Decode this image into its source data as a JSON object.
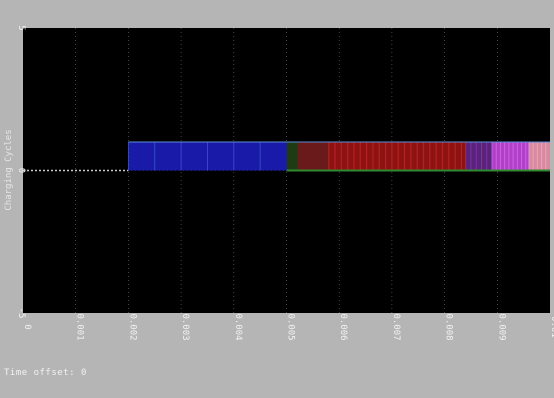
{
  "chart_data": {
    "type": "area",
    "ylabel": "Charging Cycles",
    "x": {
      "ticks": [
        0,
        0.001,
        0.002,
        0.003,
        0.004,
        0.005,
        0.006,
        0.007,
        0.008,
        0.009,
        0.01
      ],
      "tick_labels": [
        "0",
        "0.001",
        "0.002",
        "0.003",
        "0.004",
        "0.005",
        "0.006",
        "0.007",
        "0.008",
        "0.009",
        "0.01"
      ]
    },
    "y": {
      "ticks": [
        -5,
        0,
        5
      ],
      "tick_labels": [
        "-5",
        "0",
        "5"
      ]
    },
    "xlim": [
      0,
      0.01
    ],
    "ylim": [
      -5,
      5
    ],
    "grid": true,
    "series": [
      {
        "x": [
          0.002,
          0.005
        ],
        "y_low": 0,
        "y_high": 1,
        "color": "#1a1aa8"
      },
      {
        "x": [
          0.005,
          0.0052
        ],
        "y_low": 0,
        "y_high": 1,
        "color": "#1e3b14"
      },
      {
        "x": [
          0.0052,
          0.0058
        ],
        "y_low": 0,
        "y_high": 1,
        "color": "#6a1a1a"
      },
      {
        "x": [
          0.0058,
          0.0084
        ],
        "y_low": 0,
        "y_high": 1,
        "color": "#8f1212"
      },
      {
        "x": [
          0.0084,
          0.0089
        ],
        "y_low": 0,
        "y_high": 1,
        "color": "#5a2278"
      },
      {
        "x": [
          0.0089,
          0.0096
        ],
        "y_low": 0,
        "y_high": 1,
        "color": "#b040c8"
      },
      {
        "x": [
          0.0096,
          0.01
        ],
        "y_low": 0,
        "y_high": 1,
        "color": "#d88aa0"
      }
    ],
    "baseline": {
      "y": 0,
      "x": [
        0.005,
        0.01
      ],
      "color": "#2f8a2f"
    },
    "prefix_line": {
      "y": 0,
      "x": [
        0,
        0.002
      ],
      "color": "#c8c8c8"
    },
    "band_top_line": {
      "y": 1,
      "x": [
        0.002,
        0.01
      ],
      "color": "#5a8fd8"
    }
  },
  "footer": {
    "time_offset": "Time offset:  0"
  },
  "colors": {
    "window_bg": "#b5b5b5",
    "plot_bg": "#000000",
    "grid": "#c8c8c8",
    "text": "#f2f2f2"
  }
}
